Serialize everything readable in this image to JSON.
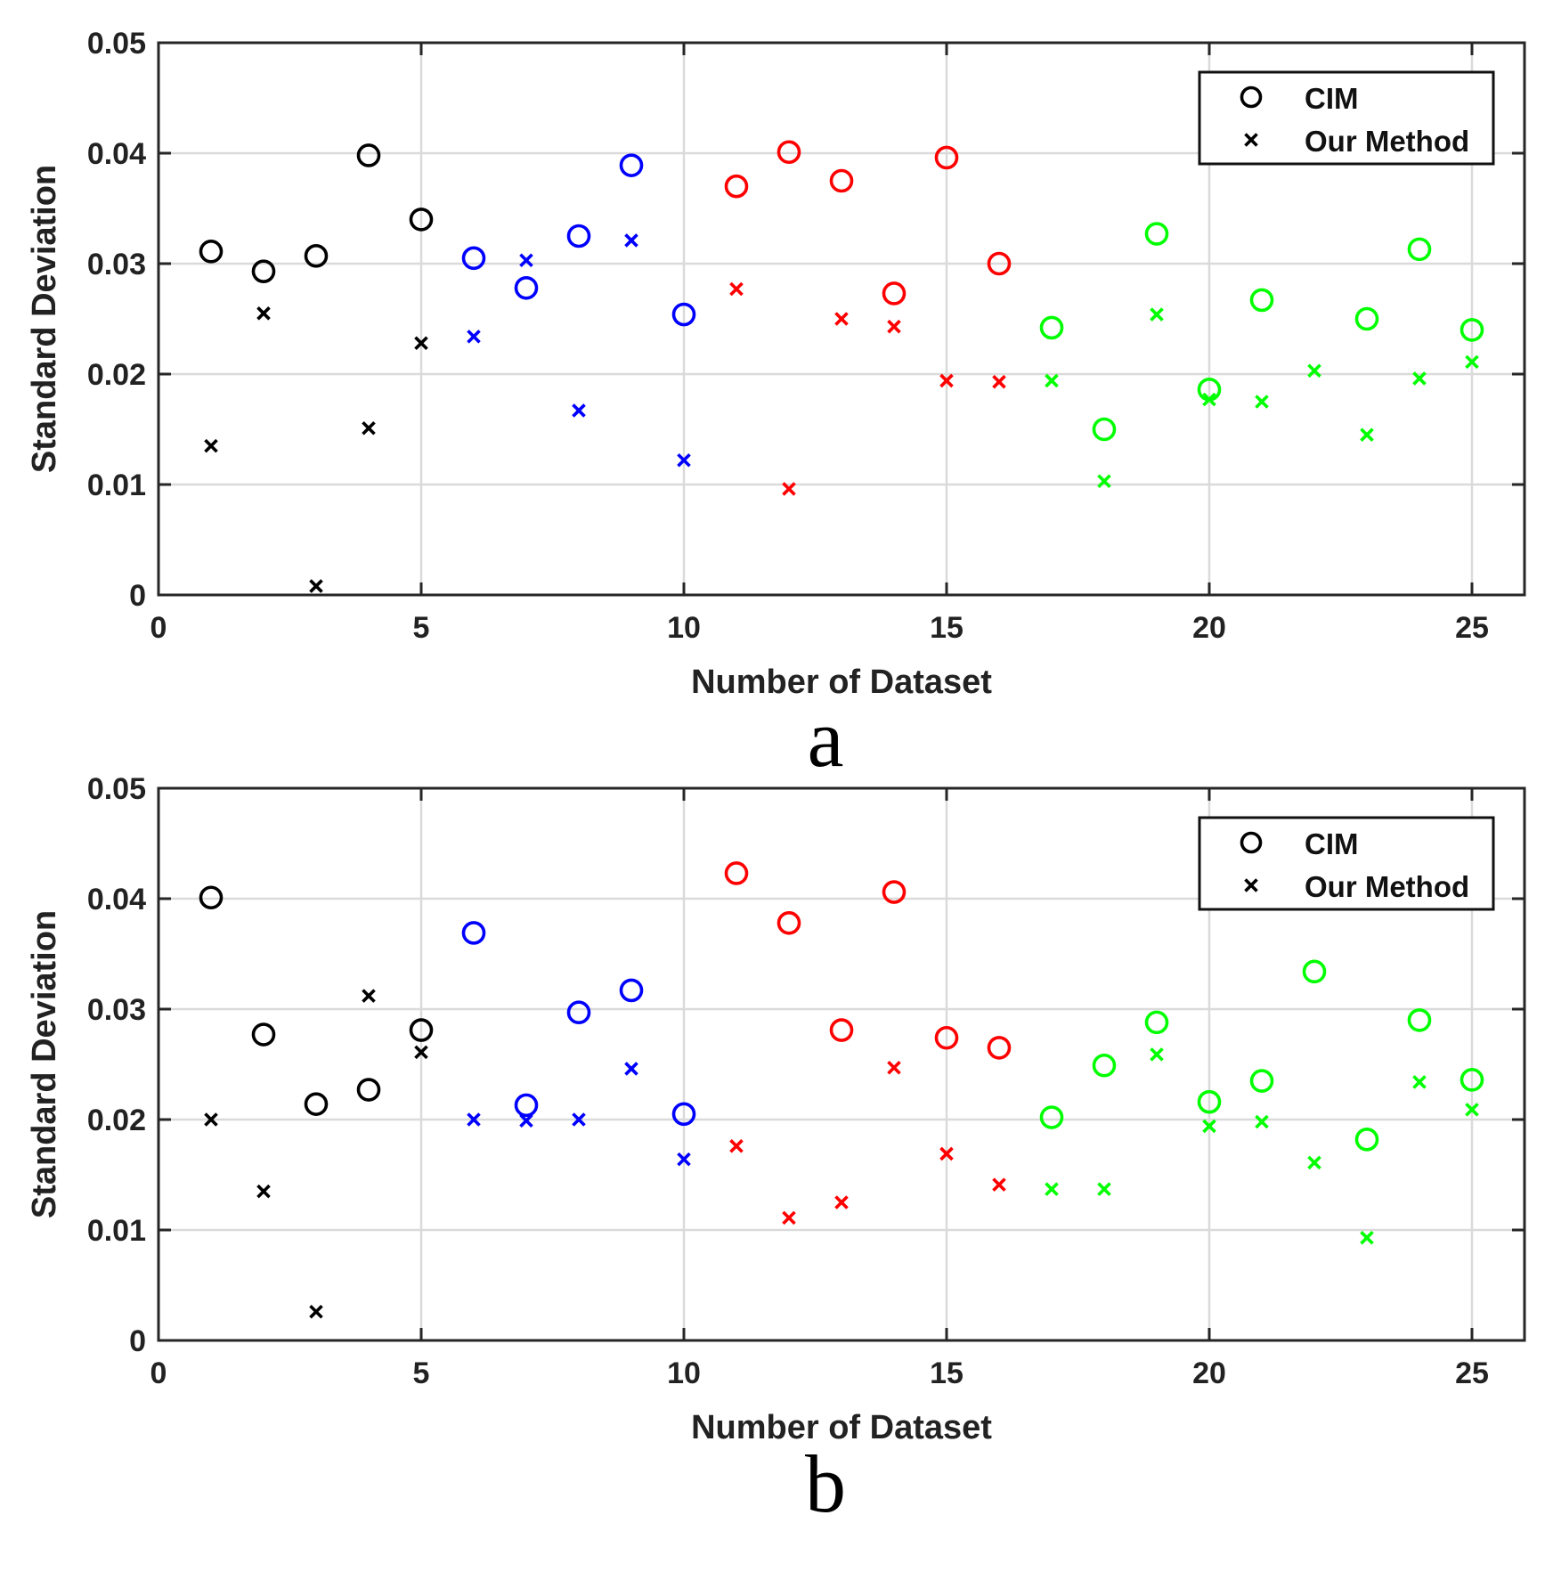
{
  "chart_data": [
    {
      "type": "scatter",
      "panel_label": "a",
      "xlabel": "Number of Dataset",
      "ylabel": "Standard Deviation",
      "xlim": [
        0,
        26
      ],
      "ylim": [
        0,
        0.05
      ],
      "x_ticks": [
        0,
        5,
        10,
        15,
        20,
        25
      ],
      "y_ticks": [
        "0",
        "0.01",
        "0.02",
        "0.03",
        "0.04",
        "0.05"
      ],
      "grid": true,
      "legend_position": "top-right",
      "x": [
        1,
        2,
        3,
        4,
        5,
        6,
        7,
        8,
        9,
        10,
        11,
        12,
        13,
        14,
        15,
        16,
        17,
        18,
        19,
        20,
        21,
        22,
        23,
        24,
        25
      ],
      "point_colors": [
        "#000000",
        "#000000",
        "#000000",
        "#000000",
        "#000000",
        "#0000ff",
        "#0000ff",
        "#0000ff",
        "#0000ff",
        "#0000ff",
        "#ff0000",
        "#ff0000",
        "#ff0000",
        "#ff0000",
        "#ff0000",
        "#ff0000",
        "#00ff00",
        "#00ff00",
        "#00ff00",
        "#00ff00",
        "#00ff00",
        "#00ff00",
        "#00ff00",
        "#00ff00",
        "#00ff00"
      ],
      "series": [
        {
          "name": "CIM",
          "marker": "circle",
          "x": [
            1,
            2,
            3,
            4,
            5,
            6,
            7,
            8,
            9,
            10,
            11,
            12,
            13,
            14,
            15,
            16,
            17,
            18,
            19,
            20,
            21,
            23,
            24,
            25
          ],
          "values": [
            0.0311,
            0.0293,
            0.0307,
            0.0398,
            0.034,
            0.0305,
            0.0278,
            0.0325,
            0.0389,
            0.0254,
            0.037,
            0.0401,
            0.0375,
            0.0273,
            0.0396,
            0.03,
            0.0242,
            0.015,
            0.0327,
            0.0186,
            0.0267,
            0.025,
            0.0313,
            0.024
          ]
        },
        {
          "name": "Our Method",
          "marker": "x",
          "x": [
            1,
            2,
            3,
            4,
            5,
            6,
            7,
            8,
            9,
            10,
            11,
            12,
            13,
            14,
            15,
            16,
            17,
            18,
            19,
            20,
            21,
            22,
            23,
            24,
            25
          ],
          "values": [
            0.0135,
            0.0255,
            0.0008,
            0.0151,
            0.0228,
            0.0234,
            0.0303,
            0.0167,
            0.0321,
            0.0122,
            0.0277,
            0.0096,
            0.025,
            0.0243,
            0.0194,
            0.0193,
            0.0194,
            0.0103,
            0.0254,
            0.0177,
            0.0175,
            0.0203,
            0.0145,
            0.0196,
            0.0211
          ]
        }
      ]
    },
    {
      "type": "scatter",
      "panel_label": "b",
      "xlabel": "Number of Dataset",
      "ylabel": "Standard Deviation",
      "xlim": [
        0,
        26
      ],
      "ylim": [
        0,
        0.05
      ],
      "x_ticks": [
        0,
        5,
        10,
        15,
        20,
        25
      ],
      "y_ticks": [
        "0",
        "0.01",
        "0.02",
        "0.03",
        "0.04",
        "0.05"
      ],
      "grid": true,
      "legend_position": "top-right",
      "x": [
        1,
        2,
        3,
        4,
        5,
        6,
        7,
        8,
        9,
        10,
        11,
        12,
        13,
        14,
        15,
        16,
        17,
        18,
        19,
        20,
        21,
        22,
        23,
        24,
        25
      ],
      "point_colors": [
        "#000000",
        "#000000",
        "#000000",
        "#000000",
        "#000000",
        "#0000ff",
        "#0000ff",
        "#0000ff",
        "#0000ff",
        "#0000ff",
        "#ff0000",
        "#ff0000",
        "#ff0000",
        "#ff0000",
        "#ff0000",
        "#ff0000",
        "#00ff00",
        "#00ff00",
        "#00ff00",
        "#00ff00",
        "#00ff00",
        "#00ff00",
        "#00ff00",
        "#00ff00",
        "#00ff00"
      ],
      "series": [
        {
          "name": "CIM",
          "marker": "circle",
          "x": [
            1,
            2,
            3,
            4,
            5,
            6,
            7,
            8,
            9,
            10,
            11,
            12,
            13,
            14,
            15,
            16,
            17,
            18,
            19,
            20,
            21,
            22,
            23,
            24,
            25
          ],
          "values": [
            0.0401,
            0.0277,
            0.0214,
            0.0227,
            0.0281,
            0.0369,
            0.0213,
            0.0297,
            0.0317,
            0.0205,
            0.0423,
            0.0378,
            0.0281,
            0.0406,
            0.0274,
            0.0265,
            0.0202,
            0.0249,
            0.0288,
            0.0216,
            0.0235,
            0.0334,
            0.0182,
            0.029,
            0.0236
          ]
        },
        {
          "name": "Our Method",
          "marker": "x",
          "x": [
            1,
            2,
            3,
            4,
            5,
            6,
            7,
            8,
            9,
            10,
            11,
            12,
            13,
            14,
            15,
            16,
            17,
            18,
            19,
            20,
            21,
            22,
            23,
            24,
            25
          ],
          "values": [
            0.02,
            0.0135,
            0.0026,
            0.0312,
            0.0261,
            0.02,
            0.0199,
            0.02,
            0.0246,
            0.0164,
            0.0176,
            0.0111,
            0.0125,
            0.0247,
            0.0169,
            0.0141,
            0.0137,
            0.0137,
            0.0259,
            0.0194,
            0.0198,
            0.0161,
            0.0093,
            0.0234,
            0.0209
          ]
        }
      ]
    }
  ]
}
